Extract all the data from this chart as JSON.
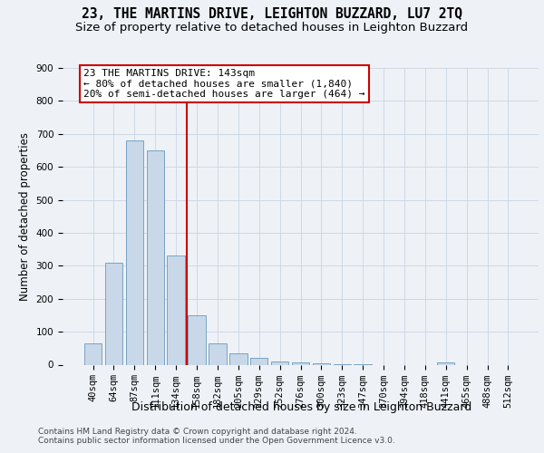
{
  "title": "23, THE MARTINS DRIVE, LEIGHTON BUZZARD, LU7 2TQ",
  "subtitle": "Size of property relative to detached houses in Leighton Buzzard",
  "xlabel": "Distribution of detached houses by size in Leighton Buzzard",
  "ylabel": "Number of detached properties",
  "footnote1": "Contains HM Land Registry data © Crown copyright and database right 2024.",
  "footnote2": "Contains public sector information licensed under the Open Government Licence v3.0.",
  "bar_labels": [
    "40sqm",
    "64sqm",
    "87sqm",
    "111sqm",
    "134sqm",
    "158sqm",
    "182sqm",
    "205sqm",
    "229sqm",
    "252sqm",
    "276sqm",
    "300sqm",
    "323sqm",
    "347sqm",
    "370sqm",
    "394sqm",
    "418sqm",
    "441sqm",
    "465sqm",
    "488sqm",
    "512sqm"
  ],
  "bar_values": [
    65,
    310,
    680,
    650,
    330,
    150,
    65,
    35,
    20,
    10,
    7,
    4,
    2,
    1,
    0,
    0,
    0,
    8,
    0,
    0,
    0
  ],
  "bar_color": "#c8d8e8",
  "bar_edge_color": "#6899bb",
  "vline_pos": 4.5,
  "vline_color": "#cc0000",
  "annotation_line1": "23 THE MARTINS DRIVE: 143sqm",
  "annotation_line2": "← 80% of detached houses are smaller (1,840)",
  "annotation_line3": "20% of semi-detached houses are larger (464) →",
  "annotation_box_color": "#ffffff",
  "annotation_box_edge_color": "#cc0000",
  "ylim": [
    0,
    900
  ],
  "yticks": [
    0,
    100,
    200,
    300,
    400,
    500,
    600,
    700,
    800,
    900
  ],
  "grid_color": "#cdd8e5",
  "background_color": "#eef2f7",
  "title_fontsize": 10.5,
  "subtitle_fontsize": 9.5,
  "ylabel_fontsize": 8.5,
  "xlabel_fontsize": 9,
  "tick_fontsize": 7.5,
  "annotation_fontsize": 8,
  "footnote_fontsize": 6.5
}
